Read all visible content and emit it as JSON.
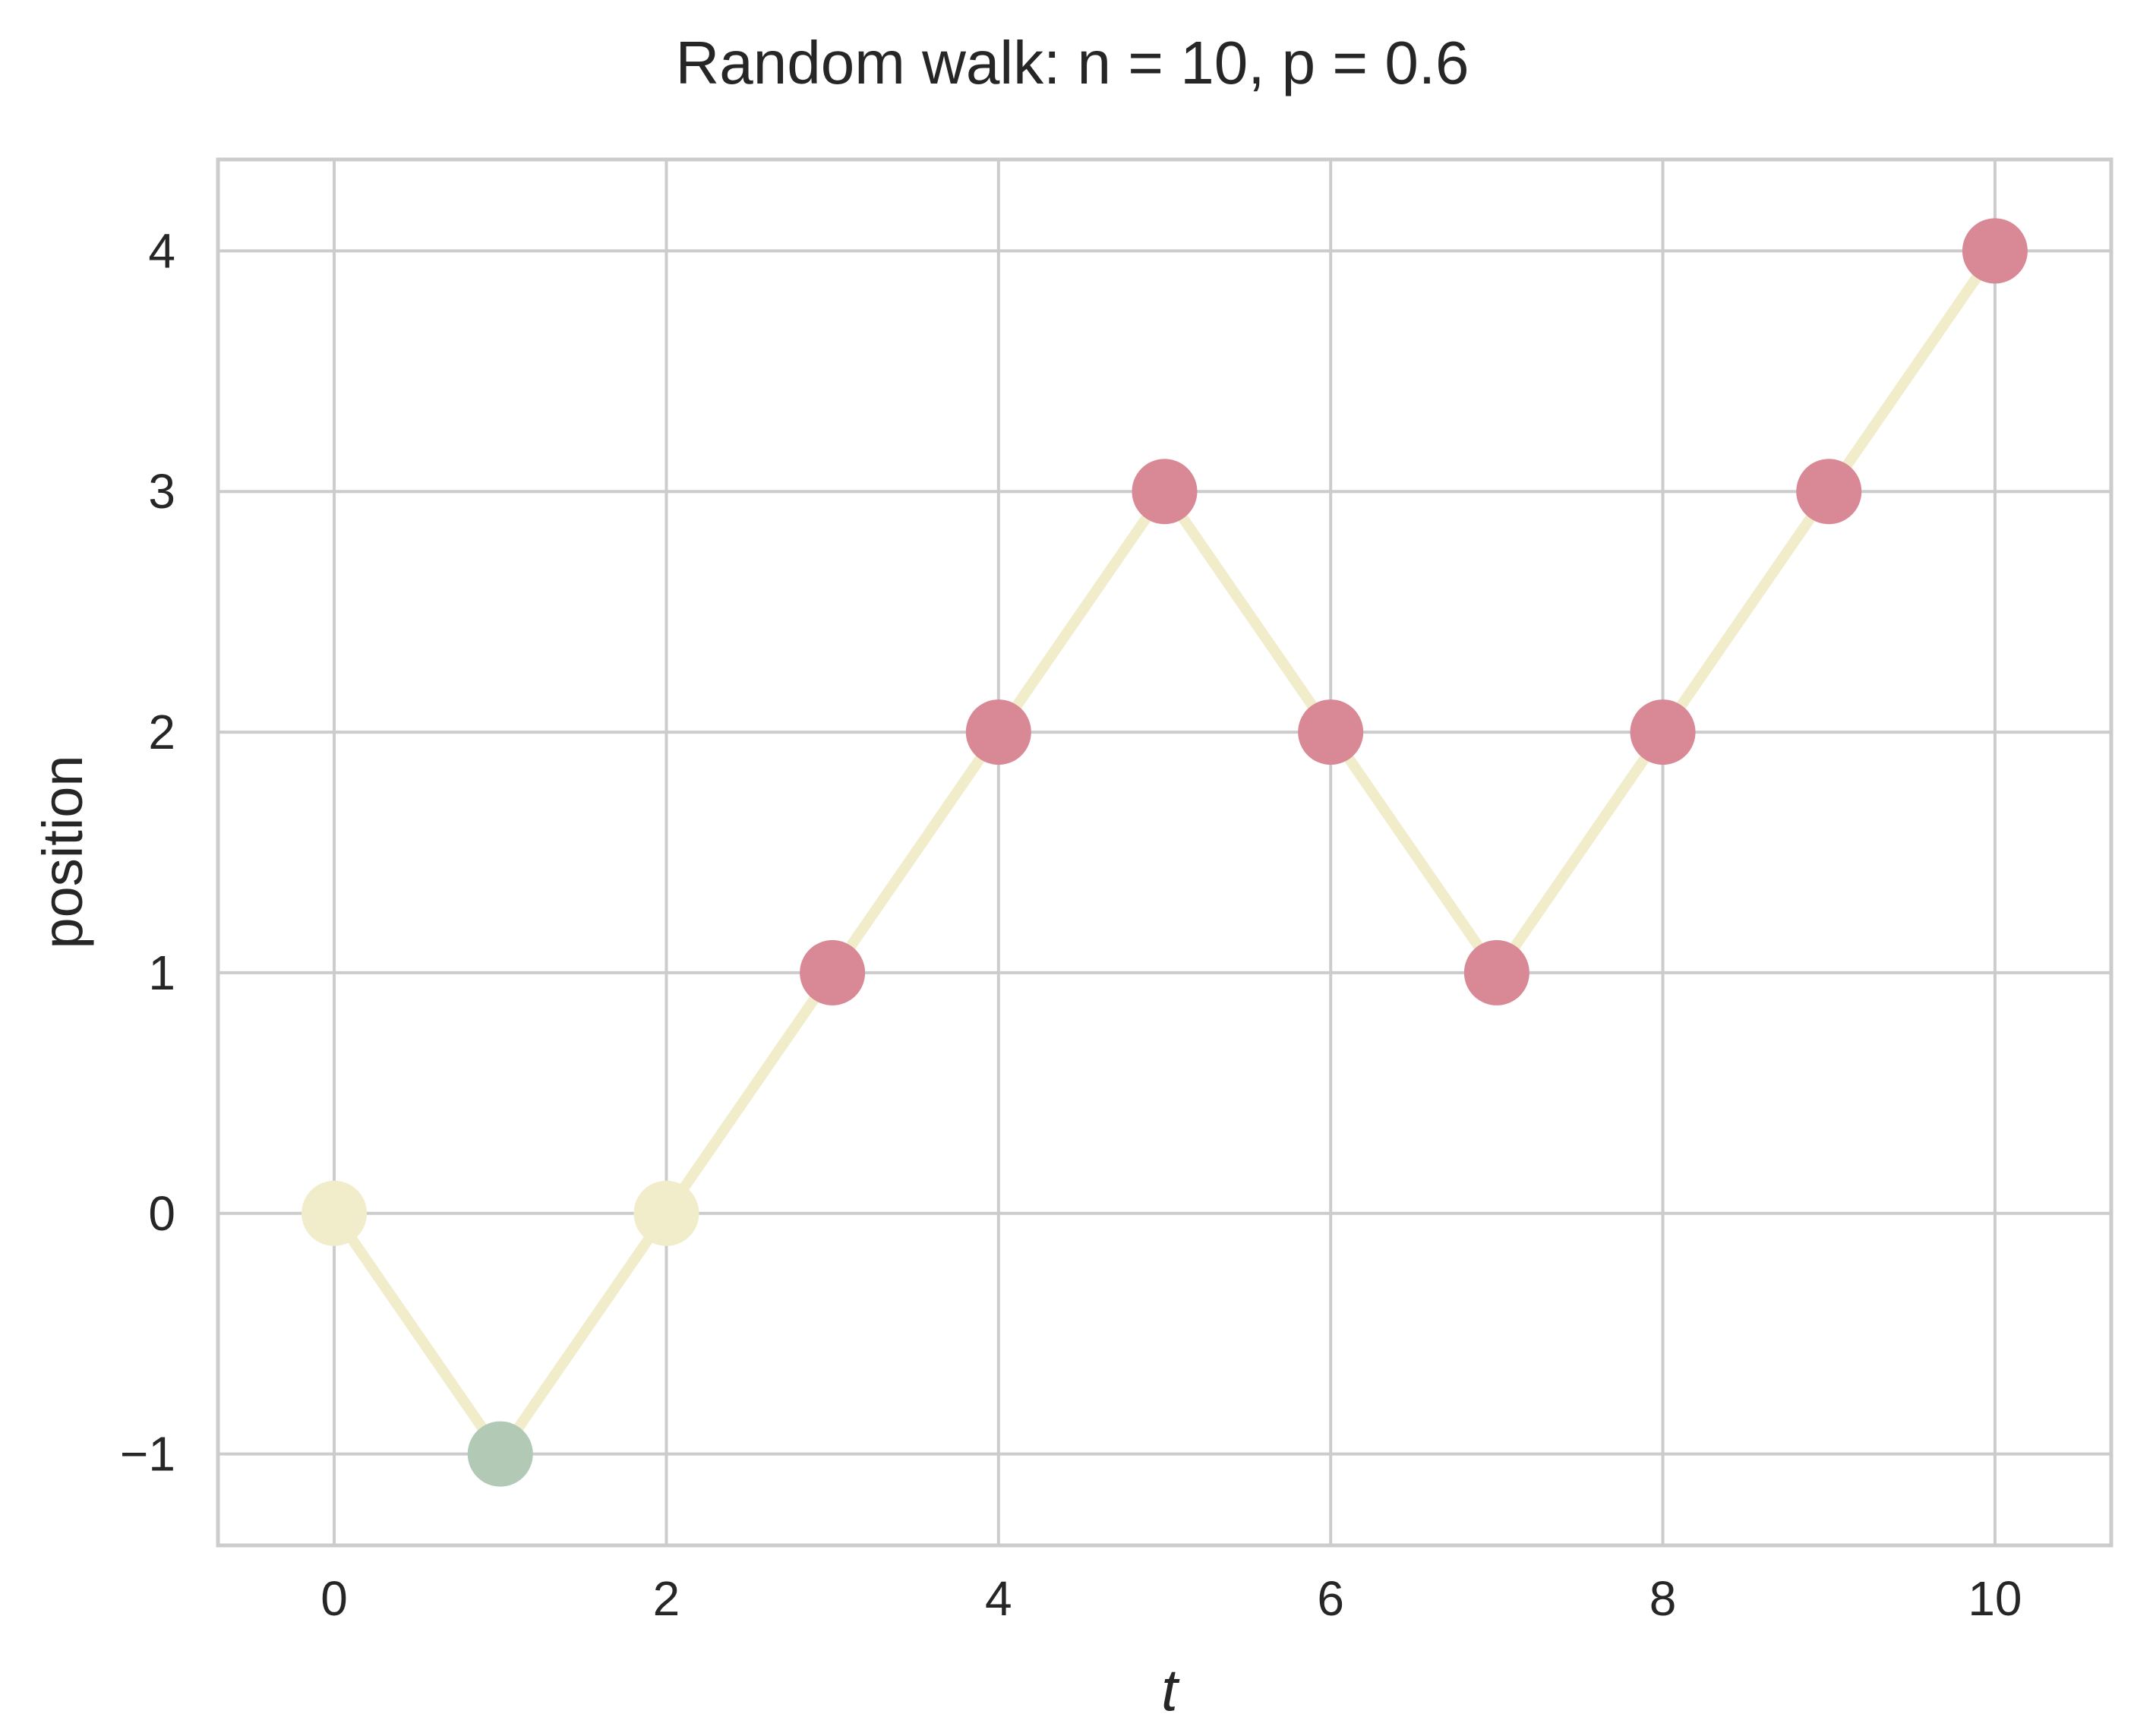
{
  "chart_data": {
    "type": "line",
    "title": "Random walk: n = 10, p = 0.6",
    "xlabel": "t",
    "ylabel": "position",
    "x": [
      0,
      1,
      2,
      3,
      4,
      5,
      6,
      7,
      8,
      9,
      10
    ],
    "y": [
      0,
      -1,
      0,
      1,
      2,
      3,
      2,
      1,
      2,
      3,
      4
    ],
    "xlim": [
      -0.7,
      10.7
    ],
    "ylim": [
      -1.38,
      4.38
    ],
    "x_ticks": [
      0,
      2,
      4,
      6,
      8,
      10
    ],
    "y_ticks": [
      -1,
      0,
      1,
      2,
      3,
      4
    ],
    "x_tick_labels": [
      "0",
      "2",
      "4",
      "6",
      "8",
      "10"
    ],
    "y_tick_labels": [
      "−1",
      "0",
      "1",
      "2",
      "3",
      "4"
    ],
    "grid": true,
    "colors": {
      "line": "#f1ecca",
      "positive": "#d98896",
      "zero": "#f1ecca",
      "negative": "#b2c9b5"
    }
  }
}
